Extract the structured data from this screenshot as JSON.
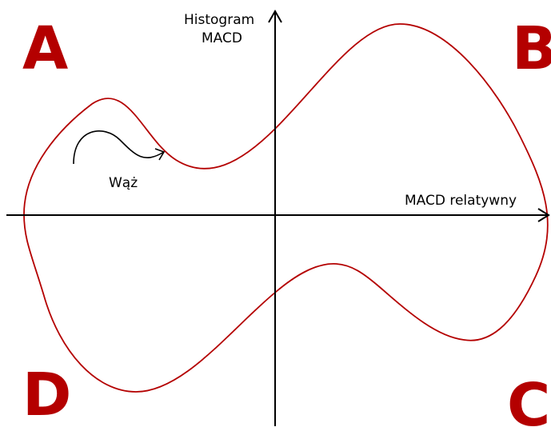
{
  "diagram": {
    "y_axis_label_line1": "Histogram",
    "y_axis_label_line2": "MACD",
    "x_axis_label": "MACD relatywny",
    "snake_label": "Wąż",
    "quadrants": {
      "a": "A",
      "b": "B",
      "c": "C",
      "d": "D"
    },
    "colors": {
      "curve": "#b40000",
      "quadrant_letters": "#b40000",
      "axes": "#000000"
    }
  }
}
